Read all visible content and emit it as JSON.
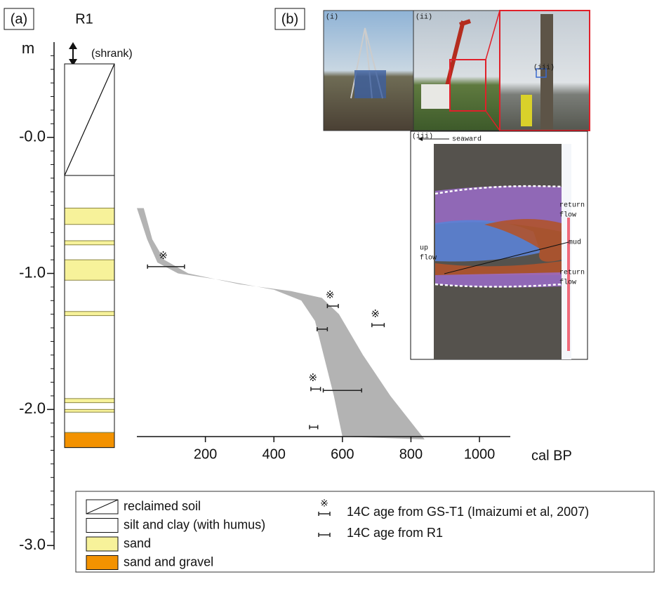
{
  "panel_a": {
    "label": "(a)",
    "column_title": "R1",
    "axis_label": "m",
    "note": "(shrank)",
    "ylim": [
      -3.03,
      0.7
    ],
    "yticks": [
      {
        "value": 0,
        "label": "-0.0"
      },
      {
        "value": -1,
        "label": "-1.0"
      },
      {
        "value": -2,
        "label": "-2.0"
      },
      {
        "value": -3,
        "label": "-3.0"
      }
    ],
    "minor_tick_step": 0.1
  },
  "legend": {
    "lithology": [
      {
        "label": "reclaimed soil",
        "color": "#ffffff",
        "diagonal": true,
        "layers": [
          {
            "top": 0.54,
            "bottom": -0.28
          }
        ]
      },
      {
        "label": "silt and clay (with humus)",
        "color": "#ffffff",
        "diagonal": false,
        "layers": [
          {
            "top": -0.28,
            "bottom": -2.17
          }
        ]
      },
      {
        "label": "sand",
        "color": "#f7f29a",
        "diagonal": false,
        "layers": [
          {
            "top": -0.52,
            "bottom": -0.64
          },
          {
            "top": -0.76,
            "bottom": -0.79
          },
          {
            "top": -0.9,
            "bottom": -1.05
          },
          {
            "top": -1.28,
            "bottom": -1.31
          },
          {
            "top": -1.92,
            "bottom": -1.95
          },
          {
            "top": -2.0,
            "bottom": -2.02
          }
        ]
      },
      {
        "label": "sand and gravel",
        "color": "#f39200",
        "diagonal": false,
        "layers": [
          {
            "top": -2.17,
            "bottom": -2.28
          }
        ]
      }
    ]
  },
  "chart_data": {
    "type": "errorbar",
    "x_label": "cal BP",
    "xlim": [
      0,
      1090
    ],
    "xticks": [
      200,
      400,
      600,
      800,
      1000
    ],
    "band": {
      "color": "#b3b3b3",
      "ages": [
        0,
        20,
        45,
        80,
        150,
        300,
        450,
        540,
        590,
        660,
        740,
        840,
        600,
        575,
        545,
        520,
        480,
        400,
        250,
        120,
        60,
        30
      ],
      "depths": [
        -0.52,
        -0.52,
        -0.75,
        -0.9,
        -1.0,
        -1.08,
        -1.13,
        -1.18,
        -1.3,
        -1.6,
        -1.9,
        -2.22,
        -2.2,
        -1.9,
        -1.6,
        -1.35,
        -1.2,
        -1.12,
        -1.05,
        -1.0,
        -0.92,
        -0.75
      ]
    },
    "series": [
      {
        "name": "14C age from GS-T1 (Imaizumi et al, 2007)",
        "marker": "※",
        "ages": [
          85,
          572,
          704,
          522
        ],
        "errors": [
          54,
          16,
          18,
          14
        ],
        "depths": [
          -0.95,
          -1.24,
          -1.38,
          -1.85
        ]
      },
      {
        "name": "14C age from R1",
        "ages": [
          541,
          600,
          516
        ],
        "errors": [
          15,
          56,
          12
        ],
        "depths": [
          -1.41,
          -1.86,
          -2.13
        ]
      }
    ]
  },
  "panel_b": {
    "label": "(b)",
    "photos": [
      "(i)",
      "(ii)",
      "(iii)"
    ],
    "zoom_label": "(iii)",
    "annotations": {
      "seaward": "seaward",
      "return_flow_upper": [
        "return",
        "flow"
      ],
      "mud": "mud",
      "up_flow": [
        "up",
        "flow"
      ],
      "return_flow_lower": [
        "return",
        "flow"
      ]
    }
  }
}
